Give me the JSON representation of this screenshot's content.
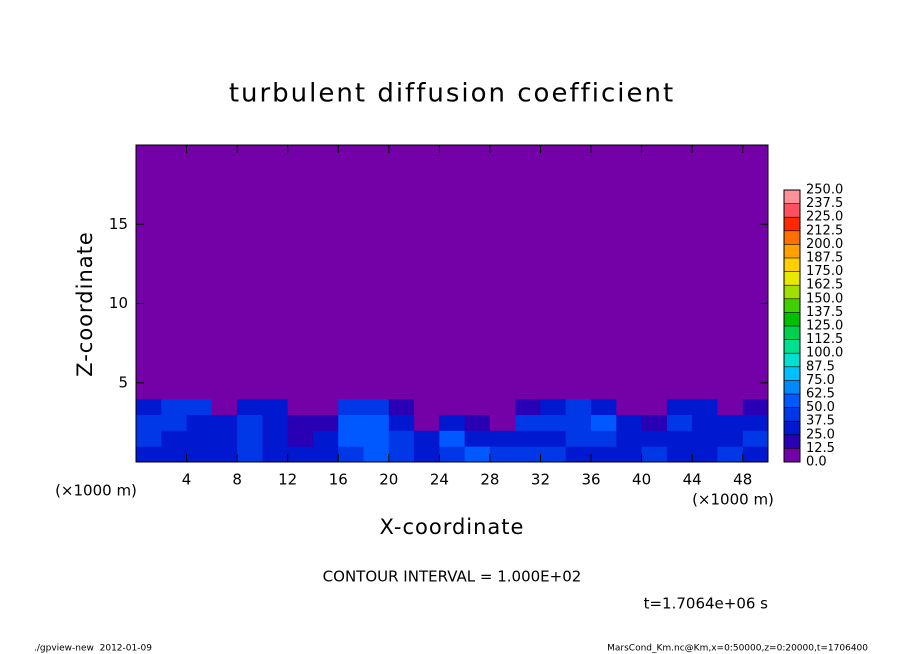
{
  "chart_data": {
    "type": "heatmap",
    "title": "turbulent diffusion coefficient",
    "x_label": "X-coordinate",
    "y_label": "Z-coordinate",
    "x_unit": "(×1000 m)",
    "y_unit": "(×1000 m)",
    "xlim": [
      0,
      50
    ],
    "ylim": [
      0,
      20
    ],
    "xticks": [
      4,
      8,
      12,
      16,
      20,
      24,
      28,
      32,
      36,
      40,
      44,
      48
    ],
    "yticks": [
      5,
      10,
      15
    ],
    "xbins": [
      0,
      2,
      4,
      6,
      8,
      10,
      12,
      14,
      16,
      18,
      20,
      22,
      24,
      26,
      28,
      30,
      32,
      34,
      36,
      38,
      40,
      42,
      44,
      46,
      48,
      50
    ],
    "ybins": [
      0,
      1,
      2,
      3,
      4,
      20
    ],
    "values": [
      [
        30,
        35,
        30,
        25,
        40,
        30,
        25,
        35,
        45,
        50,
        40,
        35,
        45,
        55,
        40,
        45,
        40,
        35,
        30,
        35,
        40,
        30,
        35,
        40,
        35
      ],
      [
        40,
        35,
        25,
        30,
        45,
        30,
        20,
        25,
        55,
        60,
        45,
        30,
        50,
        35,
        25,
        30,
        35,
        40,
        45,
        35,
        30,
        35,
        25,
        30,
        40
      ],
      [
        45,
        40,
        30,
        35,
        40,
        35,
        15,
        20,
        50,
        55,
        35,
        10,
        35,
        20,
        10,
        40,
        45,
        45,
        50,
        25,
        15,
        40,
        35,
        25,
        35
      ],
      [
        35,
        40,
        40,
        10,
        30,
        25,
        0,
        5,
        40,
        45,
        15,
        0,
        10,
        5,
        0,
        20,
        35,
        40,
        30,
        5,
        0,
        25,
        30,
        10,
        20
      ],
      [
        0,
        0,
        0,
        0,
        0,
        0,
        0,
        0,
        0,
        0,
        0,
        0,
        0,
        0,
        0,
        0,
        0,
        0,
        0,
        0,
        0,
        0,
        0,
        0,
        0
      ]
    ],
    "colorbar_ticks": [
      {
        "value": 0,
        "label": "0.0"
      },
      12.5,
      {
        "value": 25,
        "label": "25.0"
      },
      37.5,
      {
        "value": 50,
        "label": "50.0"
      },
      62.5,
      {
        "value": 75,
        "label": "75.0"
      },
      87.5,
      {
        "value": 100,
        "label": "100.0"
      },
      112.5,
      {
        "value": 125,
        "label": "125.0"
      },
      137.5,
      {
        "value": 150,
        "label": "150.0"
      },
      162.5,
      {
        "value": 175,
        "label": "175.0"
      },
      187.5,
      {
        "value": 200,
        "label": "200.0"
      },
      212.5,
      {
        "value": 225,
        "label": "225.0"
      },
      237.5,
      {
        "value": 250,
        "label": "250.0"
      }
    ],
    "colors": [
      "#7400a8",
      "#2a00b4",
      "#0018d0",
      "#0038e8",
      "#0058ff",
      "#0088ff",
      "#00c0ff",
      "#00e0d0",
      "#00e090",
      "#00d050",
      "#00c000",
      "#40d000",
      "#a0e000",
      "#e8e800",
      "#ffd000",
      "#ffa000",
      "#ff7000",
      "#ff2800",
      "#ff5060",
      "#ff9098"
    ],
    "contour_interval": "CONTOUR INTERVAL = 1.000E+02",
    "time_label": "t=1.7064e+06 s",
    "footer_left": "./gpview-new  2012-01-09",
    "footer_right": "MarsCond_Km.nc@Km,x=0:50000,z=0:20000,t=1706400"
  }
}
